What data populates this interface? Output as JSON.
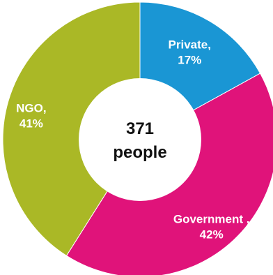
{
  "chart_data": {
    "type": "pie",
    "variant": "donut",
    "center_label": {
      "line1": "371",
      "line2": "people"
    },
    "slices": [
      {
        "name": "Private",
        "label_line1": "Private,",
        "label_line2": "17%",
        "value": 17,
        "color": "#1a96d4"
      },
      {
        "name": "Government",
        "label_line1": "Government ,",
        "label_line2": "42%",
        "value": 42,
        "color": "#e0137a"
      },
      {
        "name": "NGO",
        "label_line1": "NGO,",
        "label_line2": "41%",
        "value": 41,
        "color": "#aab826"
      }
    ],
    "start_angle_deg": 0,
    "direction": "clockwise"
  }
}
